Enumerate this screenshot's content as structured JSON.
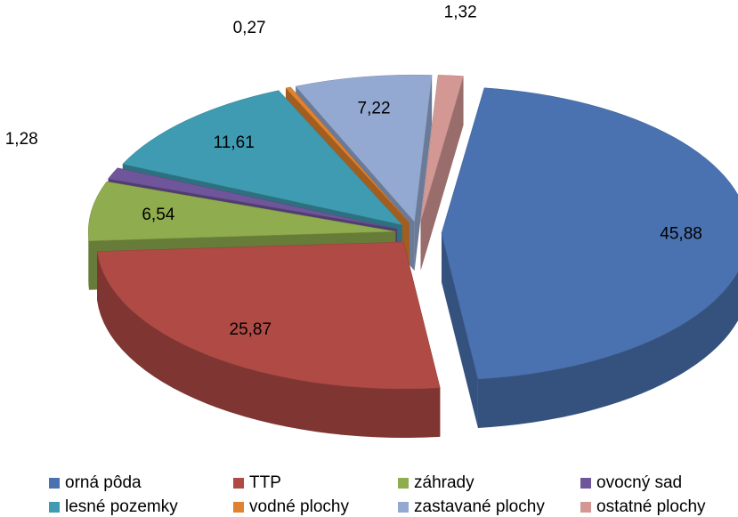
{
  "chart_data": {
    "type": "pie",
    "categories": [
      "orná pôda",
      "TTP",
      "záhrady",
      "ovocný sad",
      "lesné pozemky",
      "vodné plochy",
      "zastavané plochy",
      "ostatné plochy"
    ],
    "values": [
      45.88,
      25.87,
      6.54,
      1.28,
      11.61,
      0.27,
      7.22,
      1.32
    ],
    "value_labels": [
      "45,88",
      "25,87",
      "6,54",
      "1,28",
      "11,61",
      "0,27",
      "7,22",
      "1,32"
    ],
    "colors": [
      "#4a72b0",
      "#b04a45",
      "#8fac4e",
      "#6f559a",
      "#3f9bb1",
      "#e1822e",
      "#94a9d2",
      "#d39894"
    ],
    "legend": "bottom"
  }
}
